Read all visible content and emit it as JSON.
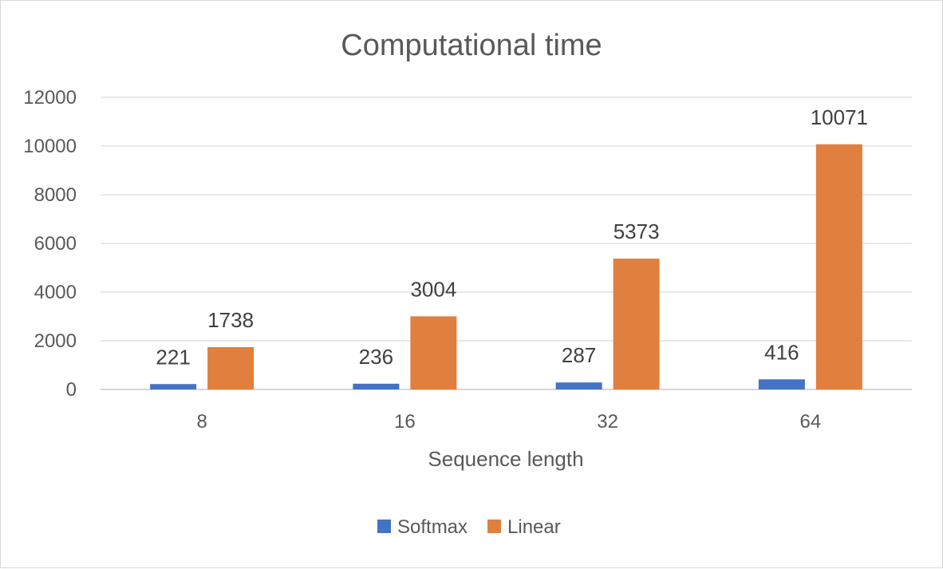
{
  "chart_data": {
    "type": "bar",
    "title": "Computational time",
    "xlabel": "Sequence length",
    "ylabel": "",
    "categories": [
      "8",
      "16",
      "32",
      "64"
    ],
    "ylim": [
      0,
      12000
    ],
    "yticks": [
      0,
      2000,
      4000,
      6000,
      8000,
      10000,
      12000
    ],
    "grid": true,
    "legend_position": "bottom",
    "series": [
      {
        "name": "Softmax",
        "color": "#4472c4",
        "values": [
          221,
          236,
          287,
          416
        ]
      },
      {
        "name": "Linear",
        "color": "#e07f3e",
        "values": [
          1738,
          3004,
          5373,
          10071
        ]
      }
    ]
  }
}
